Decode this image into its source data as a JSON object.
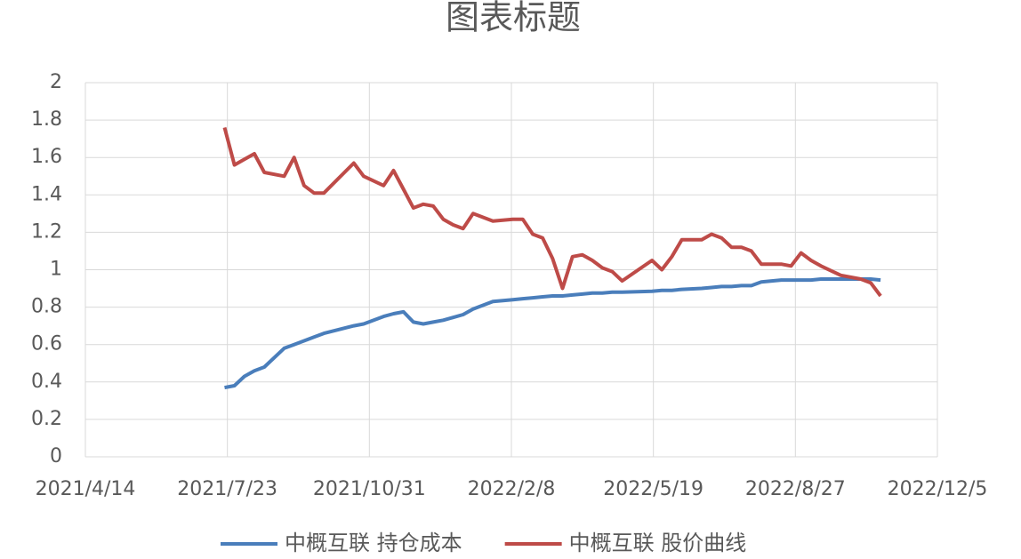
{
  "chart_data": {
    "type": "line",
    "title": "图表标题",
    "x": [
      "2021/7/21",
      "2021/7/28",
      "2021/8/4",
      "2021/8/11",
      "2021/8/18",
      "2021/9/1",
      "2021/9/8",
      "2021/9/15",
      "2021/9/22",
      "2021/9/29",
      "2021/10/20",
      "2021/10/27",
      "2021/11/10",
      "2021/11/17",
      "2021/11/24",
      "2021/12/1",
      "2021/12/8",
      "2021/12/15",
      "2021/12/22",
      "2021/12/29",
      "2022/1/5",
      "2022/1/12",
      "2022/1/26",
      "2022/2/9",
      "2022/2/16",
      "2022/2/23",
      "2022/3/2",
      "2022/3/9",
      "2022/3/16",
      "2022/3/23",
      "2022/3/30",
      "2022/4/6",
      "2022/4/13",
      "2022/4/20",
      "2022/4/27",
      "2022/5/18",
      "2022/5/25",
      "2022/6/1",
      "2022/6/8",
      "2022/6/22",
      "2022/6/29",
      "2022/7/6",
      "2022/7/13",
      "2022/7/20",
      "2022/7/27",
      "2022/8/3",
      "2022/8/17",
      "2022/8/24",
      "2022/8/31",
      "2022/9/7",
      "2022/9/14",
      "2022/9/28",
      "2022/10/12",
      "2022/10/19",
      "2022/10/26"
    ],
    "series": [
      {
        "name": "中概互联 持仓成本",
        "color": "#4a7ebb",
        "values": [
          0.37,
          0.38,
          0.43,
          0.46,
          0.48,
          0.58,
          0.6,
          0.62,
          0.64,
          0.66,
          0.7,
          0.71,
          0.75,
          0.765,
          0.775,
          0.72,
          0.71,
          0.72,
          0.73,
          0.745,
          0.76,
          0.79,
          0.83,
          0.84,
          0.845,
          0.85,
          0.855,
          0.86,
          0.86,
          0.865,
          0.87,
          0.875,
          0.875,
          0.88,
          0.88,
          0.885,
          0.89,
          0.89,
          0.895,
          0.9,
          0.905,
          0.91,
          0.91,
          0.915,
          0.915,
          0.935,
          0.945,
          0.945,
          0.945,
          0.945,
          0.95,
          0.95,
          0.95,
          0.95,
          0.945
        ]
      },
      {
        "name": "中概互联 股价曲线",
        "color": "#be4b48",
        "values": [
          1.76,
          1.56,
          1.59,
          1.62,
          1.52,
          1.5,
          1.6,
          1.45,
          1.41,
          1.41,
          1.57,
          1.5,
          1.45,
          1.53,
          1.43,
          1.33,
          1.35,
          1.34,
          1.27,
          1.24,
          1.22,
          1.3,
          1.26,
          1.27,
          1.27,
          1.19,
          1.17,
          1.06,
          0.9,
          1.07,
          1.08,
          1.05,
          1.01,
          0.99,
          0.94,
          1.05,
          1.0,
          1.07,
          1.16,
          1.16,
          1.19,
          1.17,
          1.12,
          1.12,
          1.1,
          1.03,
          1.03,
          1.02,
          1.09,
          1.05,
          1.02,
          0.97,
          0.95,
          0.93,
          0.86
        ]
      }
    ],
    "xlim": [
      "2021/4/14",
      "2022/12/5"
    ],
    "xticks": [
      "2021/4/14",
      "2021/7/23",
      "2021/10/31",
      "2022/2/8",
      "2022/5/19",
      "2022/8/27",
      "2022/12/5"
    ],
    "ylim": [
      0,
      2
    ],
    "yticks": [
      0,
      0.2,
      0.4,
      0.6,
      0.8,
      1,
      1.2,
      1.4,
      1.6,
      1.8,
      2
    ],
    "grid": true,
    "legend": "bottom"
  }
}
